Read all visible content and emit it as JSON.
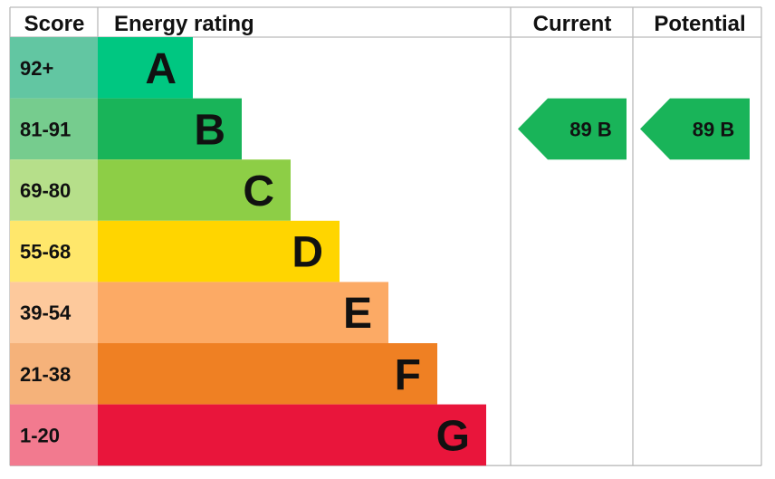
{
  "chart_data": {
    "type": "bar",
    "headers": {
      "score": "Score",
      "rating": "Energy rating",
      "current": "Current",
      "potential": "Potential"
    },
    "bands": [
      {
        "score": "92+",
        "letter": "A",
        "color": "#00c781",
        "score_color": "#62c6a2"
      },
      {
        "score": "81-91",
        "letter": "B",
        "color": "#19b459",
        "score_color": "#76cc8e"
      },
      {
        "score": "69-80",
        "letter": "C",
        "color": "#8dce46",
        "score_color": "#b6df8a"
      },
      {
        "score": "55-68",
        "letter": "D",
        "color": "#ffd500",
        "score_color": "#ffe76b"
      },
      {
        "score": "39-54",
        "letter": "E",
        "color": "#fcaa65",
        "score_color": "#fdc99c"
      },
      {
        "score": "21-38",
        "letter": "F",
        "color": "#ef8023",
        "score_color": "#f5b27a"
      },
      {
        "score": "1-20",
        "letter": "G",
        "color": "#e9153b",
        "score_color": "#f27a8f"
      }
    ],
    "current": {
      "value": 89,
      "letter": "B",
      "label": "89  B"
    },
    "potential": {
      "value": 89,
      "letter": "B",
      "label": "89  B"
    }
  }
}
